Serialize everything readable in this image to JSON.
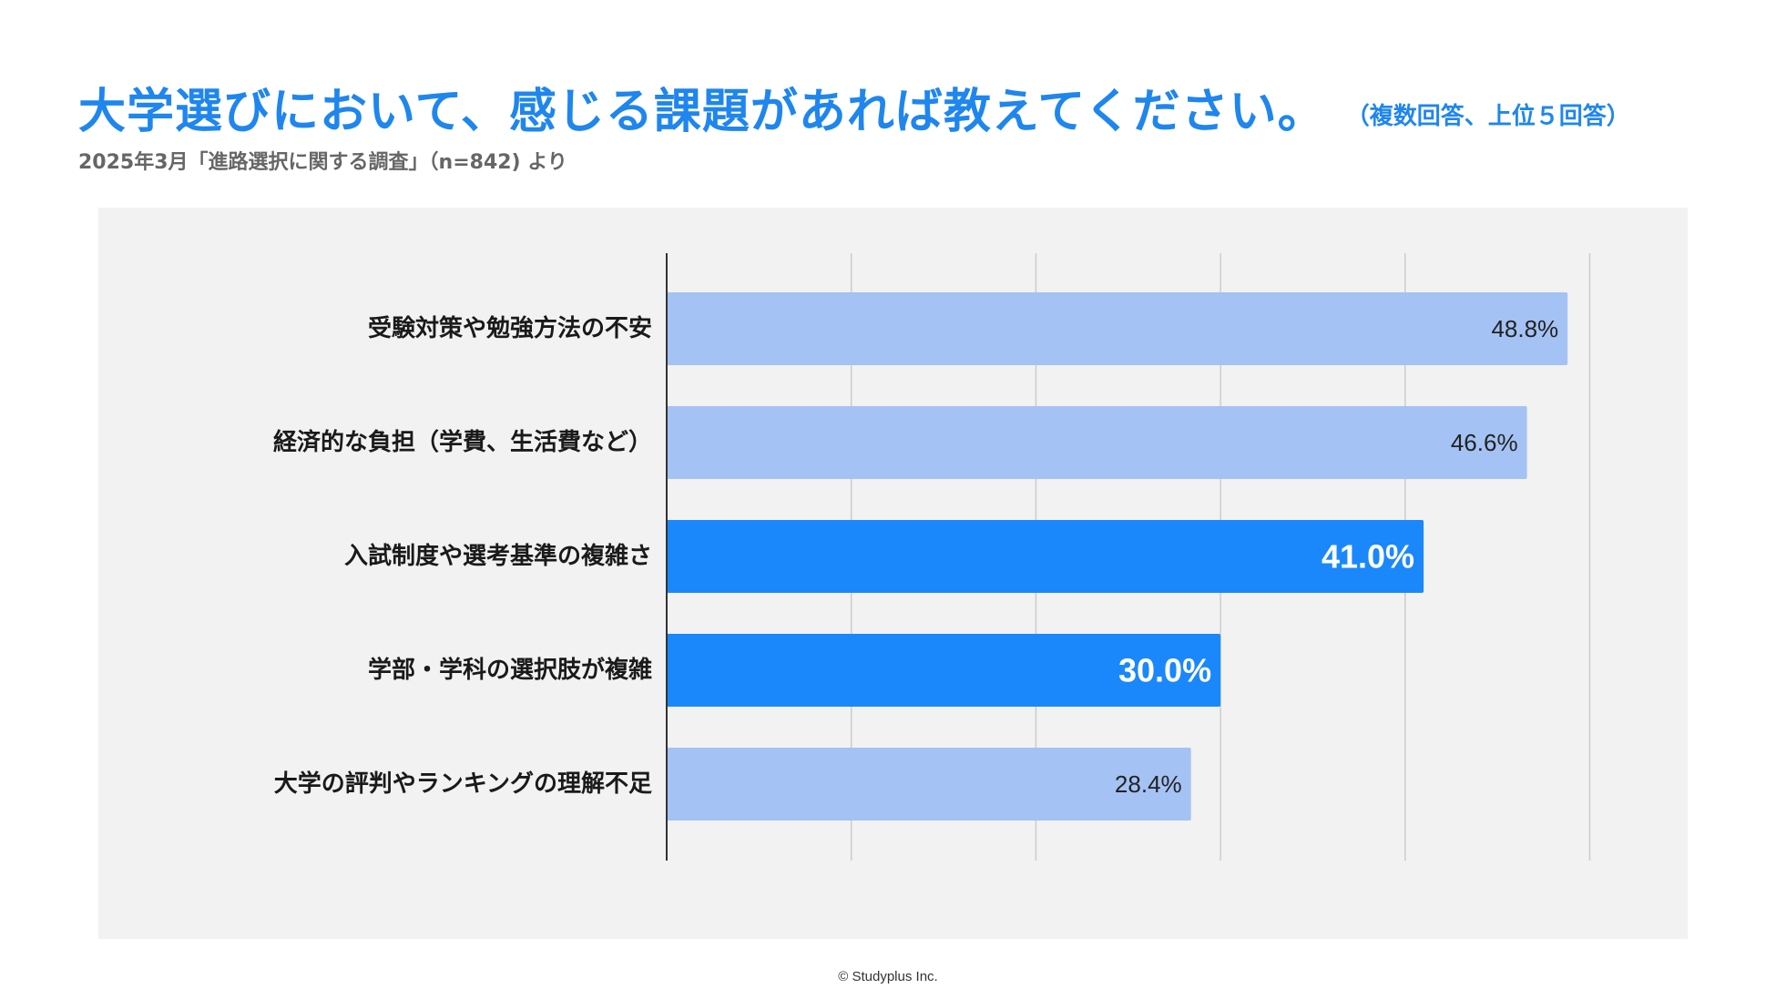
{
  "header": {
    "title": "大学選びにおいて、感じる課題があれば教えてください。",
    "title_note": "（複数回答、上位５回答）",
    "subtitle": "2025年3月「進路選択に関する調査」（n=842) より"
  },
  "footer": {
    "copyright": "© Studyplus Inc."
  },
  "colors": {
    "accent": "#1f86ee",
    "bar_highlight": "#1a88fa",
    "bar_normal": "#a4c2f4",
    "panel_bg": "#f2f2f2",
    "grid": "#cccccc"
  },
  "chart_data": {
    "type": "bar",
    "orientation": "horizontal",
    "title": "大学選びにおいて、感じる課題があれば教えてください。",
    "categories": [
      "受験対策や勉強方法の不安",
      "経済的な負担（学費、生活費など）",
      "入試制度や選考基準の複雑さ",
      "学部・学科の選択肢が複雑",
      "大学の評判やランキングの理解不足"
    ],
    "values": [
      48.8,
      46.6,
      41.0,
      30.0,
      28.4
    ],
    "value_labels": [
      "48.8%",
      "46.6%",
      "41.0%",
      "30.0%",
      "28.4%"
    ],
    "highlighted": [
      false,
      false,
      true,
      true,
      false
    ],
    "unit": "%",
    "xlim": [
      0,
      50
    ],
    "grid_step": 10,
    "grid": true,
    "xlabel": "",
    "ylabel": ""
  }
}
